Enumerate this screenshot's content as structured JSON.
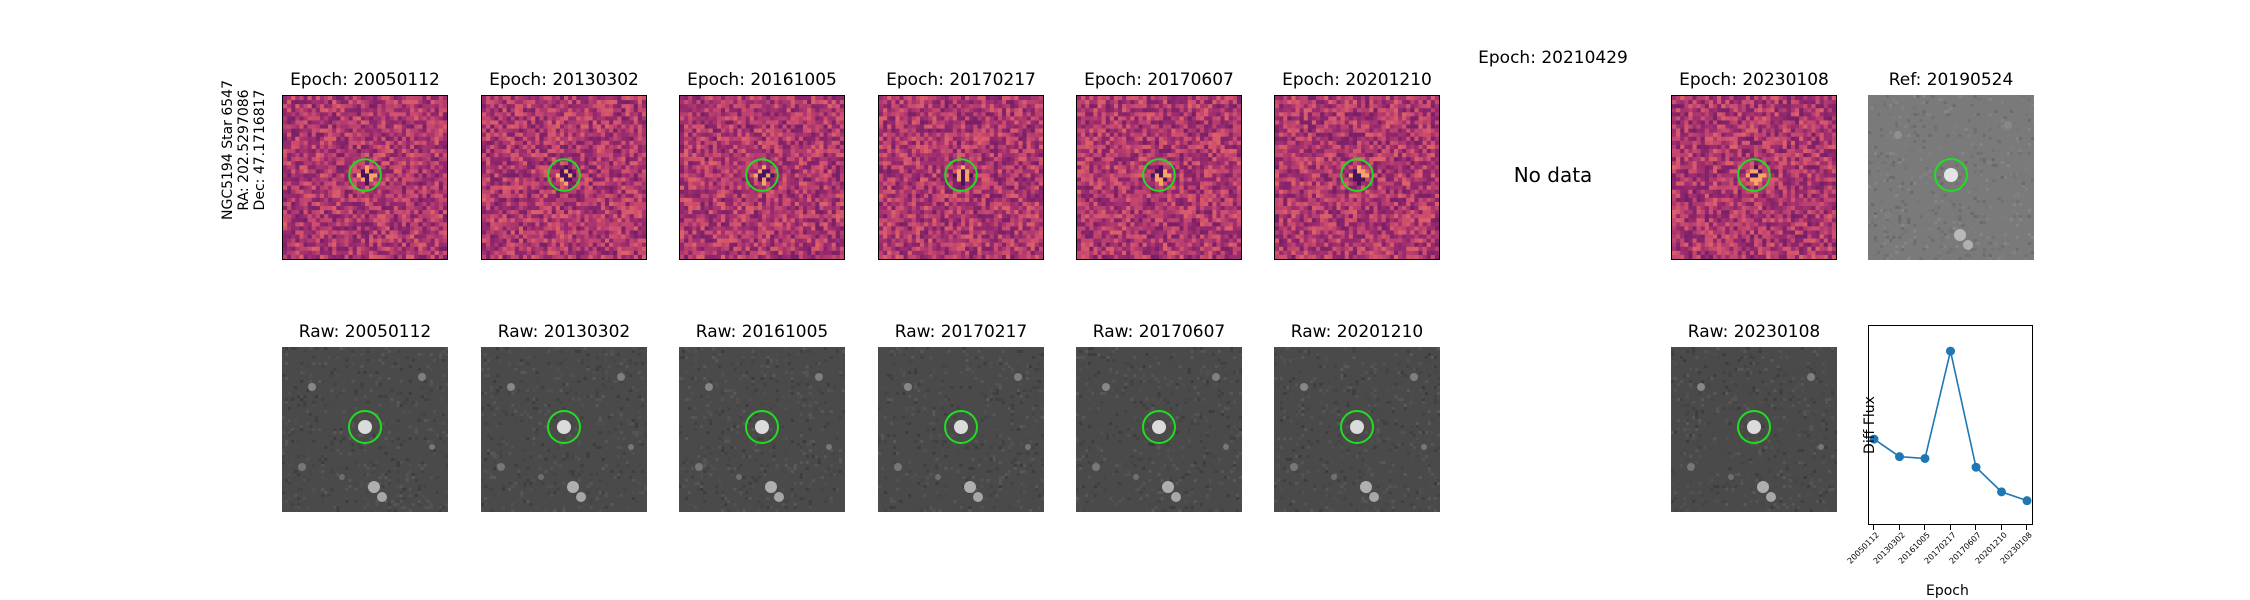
{
  "target_info": {
    "line1": "NGC5194 Star 6547",
    "line2": "RA: 202.5297086",
    "line3": "Dec: 47.1716817"
  },
  "diff_titles": [
    "Epoch: 20050112",
    "Epoch: 20130302",
    "Epoch: 20161005",
    "Epoch: 20170217",
    "Epoch: 20170607",
    "Epoch: 20201210",
    "Epoch: 20210429",
    "Epoch: 20230108",
    "Ref: 20190524"
  ],
  "no_data_label": "No data",
  "raw_titles": [
    "Raw: 20050112",
    "Raw: 20130302",
    "Raw: 20161005",
    "Raw: 20170217",
    "Raw: 20170607",
    "Raw: 20201210",
    "Raw: 20230108"
  ],
  "colors": {
    "marker_circle": "#22dd22",
    "line": "#1f77b4"
  },
  "chart_data": {
    "type": "line",
    "xlabel": "Epoch",
    "ylabel": "Diff Flux",
    "x": [
      "20050112",
      "20130302",
      "20161005",
      "20170217",
      "20170607",
      "20201210",
      "20230108"
    ],
    "y": [
      0.42,
      0.32,
      0.31,
      0.92,
      0.26,
      0.12,
      0.07
    ],
    "ylim": [
      0,
      1
    ],
    "y_ticks_shown": false,
    "marker": "circle"
  }
}
